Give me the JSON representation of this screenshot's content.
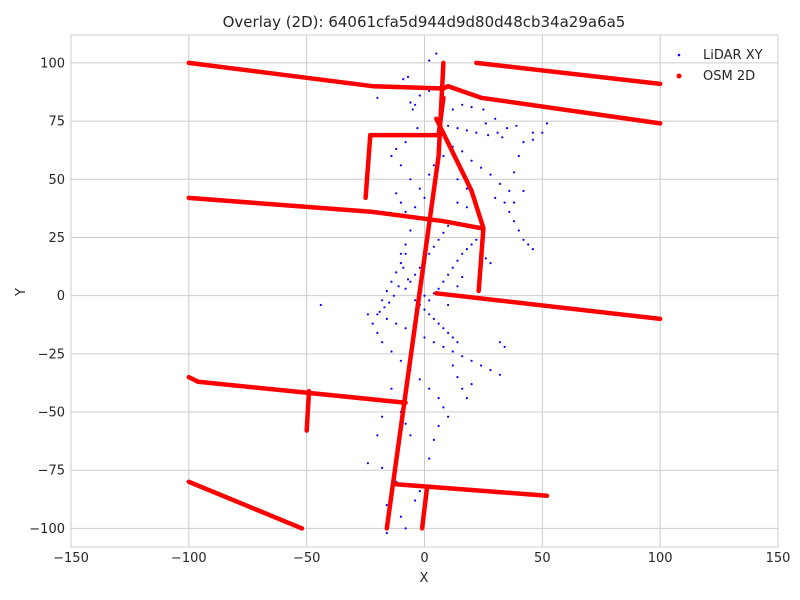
{
  "chart_data": {
    "type": "scatter",
    "title": "Overlay (2D): 64061cfa5d944d9d80d48cb34a29a6a5",
    "xlabel": "X",
    "ylabel": "Y",
    "xlim": [
      -150,
      150
    ],
    "ylim": [
      -108,
      112
    ],
    "xticks": [
      -150,
      -100,
      -50,
      0,
      50,
      100,
      150
    ],
    "yticks": [
      -100,
      -75,
      -50,
      -25,
      0,
      25,
      50,
      75,
      100
    ],
    "xtick_labels": [
      "−150",
      "−100",
      "−50",
      "0",
      "50",
      "100",
      "150"
    ],
    "ytick_labels": [
      "−100",
      "−75",
      "−50",
      "−25",
      "0",
      "25",
      "50",
      "75",
      "100"
    ],
    "grid": true,
    "legend_position": "top-right",
    "series": [
      {
        "name": "LiDAR XY",
        "color": "#0000ff",
        "marker": "dot",
        "points": [
          [
            2,
            101
          ],
          [
            5,
            104
          ],
          [
            -9,
            93
          ],
          [
            -7,
            94
          ],
          [
            -20,
            85
          ],
          [
            -4,
            82
          ],
          [
            -6,
            83
          ],
          [
            -5,
            80
          ],
          [
            2,
            88
          ],
          [
            -2,
            86
          ],
          [
            12,
            80
          ],
          [
            16,
            82
          ],
          [
            20,
            81
          ],
          [
            25,
            80
          ],
          [
            10,
            73
          ],
          [
            14,
            72
          ],
          [
            18,
            71
          ],
          [
            22,
            70
          ],
          [
            27,
            69
          ],
          [
            31,
            70
          ],
          [
            35,
            72
          ],
          [
            39,
            73
          ],
          [
            -3,
            72
          ],
          [
            -6,
            69
          ],
          [
            -8,
            66
          ],
          [
            -12,
            63
          ],
          [
            -14,
            60
          ],
          [
            -10,
            56
          ],
          [
            -6,
            50
          ],
          [
            -2,
            46
          ],
          [
            2,
            52
          ],
          [
            4,
            56
          ],
          [
            8,
            60
          ],
          [
            12,
            64
          ],
          [
            16,
            62
          ],
          [
            20,
            58
          ],
          [
            24,
            55
          ],
          [
            28,
            52
          ],
          [
            32,
            48
          ],
          [
            36,
            45
          ],
          [
            38,
            53
          ],
          [
            40,
            60
          ],
          [
            42,
            66
          ],
          [
            46,
            67
          ],
          [
            50,
            70
          ],
          [
            52,
            74
          ],
          [
            26,
            74
          ],
          [
            30,
            76
          ],
          [
            33,
            68
          ],
          [
            46,
            70
          ],
          [
            -12,
            44
          ],
          [
            -10,
            40
          ],
          [
            -8,
            36
          ],
          [
            -4,
            38
          ],
          [
            0,
            42
          ],
          [
            4,
            44
          ],
          [
            14,
            40
          ],
          [
            18,
            46
          ],
          [
            14,
            50
          ],
          [
            18,
            38
          ],
          [
            30,
            42
          ],
          [
            34,
            40
          ],
          [
            36,
            36
          ],
          [
            38,
            32
          ],
          [
            40,
            28
          ],
          [
            42,
            24
          ],
          [
            44,
            22
          ],
          [
            46,
            20
          ],
          [
            38,
            40
          ],
          [
            42,
            45
          ],
          [
            -6,
            28
          ],
          [
            -8,
            22
          ],
          [
            -10,
            18
          ],
          [
            -9,
            12
          ],
          [
            -7,
            7
          ],
          [
            -11,
            4
          ],
          [
            -13,
            0
          ],
          [
            -15,
            -3
          ],
          [
            -17,
            -5
          ],
          [
            -19,
            -7
          ],
          [
            -8,
            3
          ],
          [
            -6,
            6
          ],
          [
            -4,
            9
          ],
          [
            -2,
            12
          ],
          [
            0,
            15
          ],
          [
            2,
            18
          ],
          [
            4,
            21
          ],
          [
            6,
            24
          ],
          [
            8,
            27
          ],
          [
            10,
            30
          ],
          [
            -4,
            -2
          ],
          [
            -2,
            -4
          ],
          [
            0,
            -6
          ],
          [
            2,
            -8
          ],
          [
            4,
            -10
          ],
          [
            6,
            -12
          ],
          [
            8,
            -14
          ],
          [
            10,
            -16
          ],
          [
            12,
            -18
          ],
          [
            14,
            -20
          ],
          [
            -2,
            2
          ],
          [
            0,
            0
          ],
          [
            2,
            -2
          ],
          [
            4,
            1
          ],
          [
            6,
            3
          ],
          [
            8,
            6
          ],
          [
            10,
            9
          ],
          [
            12,
            12
          ],
          [
            14,
            15
          ],
          [
            16,
            18
          ],
          [
            18,
            20
          ],
          [
            20,
            22
          ],
          [
            22,
            24
          ],
          [
            24,
            20
          ],
          [
            26,
            16
          ],
          [
            28,
            14
          ],
          [
            16,
            8
          ],
          [
            14,
            4
          ],
          [
            12,
            0
          ],
          [
            10,
            -4
          ],
          [
            -16,
            -10
          ],
          [
            -12,
            -12
          ],
          [
            -8,
            -14
          ],
          [
            -4,
            -16
          ],
          [
            0,
            -18
          ],
          [
            4,
            -20
          ],
          [
            8,
            -22
          ],
          [
            12,
            -24
          ],
          [
            16,
            -26
          ],
          [
            20,
            -28
          ],
          [
            24,
            -30
          ],
          [
            28,
            -32
          ],
          [
            32,
            -34
          ],
          [
            34,
            -22
          ],
          [
            32,
            -20
          ],
          [
            -20,
            -16
          ],
          [
            -18,
            -20
          ],
          [
            -14,
            -24
          ],
          [
            -10,
            -28
          ],
          [
            -6,
            -32
          ],
          [
            -2,
            -36
          ],
          [
            2,
            -40
          ],
          [
            6,
            -44
          ],
          [
            8,
            -48
          ],
          [
            10,
            -52
          ],
          [
            12,
            -30
          ],
          [
            14,
            -35
          ],
          [
            16,
            -40
          ],
          [
            18,
            -44
          ],
          [
            20,
            -38
          ],
          [
            -14,
            -40
          ],
          [
            -12,
            -45
          ],
          [
            -10,
            -50
          ],
          [
            -8,
            -55
          ],
          [
            -6,
            -60
          ],
          [
            -18,
            -52
          ],
          [
            -20,
            -60
          ],
          [
            -24,
            -72
          ],
          [
            -18,
            -74
          ],
          [
            -12,
            -80
          ],
          [
            -14,
            -86
          ],
          [
            -16,
            -90
          ],
          [
            -10,
            -95
          ],
          [
            -8,
            -100
          ],
          [
            -16,
            -102
          ],
          [
            -4,
            -88
          ],
          [
            -2,
            -84
          ],
          [
            2,
            -70
          ],
          [
            4,
            -62
          ],
          [
            6,
            -56
          ],
          [
            -44,
            -4
          ],
          [
            -20,
            -8
          ],
          [
            -18,
            -2
          ],
          [
            -16,
            2
          ],
          [
            -14,
            6
          ],
          [
            -12,
            10
          ],
          [
            -10,
            14
          ],
          [
            -8,
            18
          ],
          [
            -22,
            -12
          ],
          [
            -24,
            -8
          ]
        ]
      },
      {
        "name": "OSM 2D",
        "color": "#ff0000",
        "marker": "dot",
        "polylines": [
          [
            [
              -100,
              100
            ],
            [
              -22,
              90
            ],
            [
              8,
              89
            ],
            [
              10,
              90
            ],
            [
              24,
              85
            ],
            [
              100,
              74
            ]
          ],
          [
            [
              22,
              100
            ],
            [
              100,
              91
            ]
          ],
          [
            [
              -100,
              42
            ],
            [
              -22,
              36
            ],
            [
              8,
              32
            ],
            [
              24,
              29
            ]
          ],
          [
            [
              -25,
              42
            ],
            [
              -23,
              69
            ],
            [
              6,
              69
            ],
            [
              8,
              85
            ]
          ],
          [
            [
              -16,
              -100
            ],
            [
              6,
              60
            ],
            [
              8,
              100
            ]
          ],
          [
            [
              5,
              76
            ],
            [
              20,
              45
            ],
            [
              25,
              29
            ],
            [
              23,
              2
            ]
          ],
          [
            [
              5,
              1
            ],
            [
              100,
              -10
            ]
          ],
          [
            [
              -100,
              -35
            ],
            [
              -96,
              -37
            ],
            [
              -8,
              -46
            ]
          ],
          [
            [
              -49,
              -41
            ],
            [
              -50,
              -58
            ]
          ],
          [
            [
              -12,
              -81
            ],
            [
              52,
              -86
            ]
          ],
          [
            [
              -100,
              -80
            ],
            [
              -52,
              -100
            ]
          ],
          [
            [
              1,
              -83
            ],
            [
              -1,
              -100
            ]
          ]
        ]
      }
    ]
  }
}
